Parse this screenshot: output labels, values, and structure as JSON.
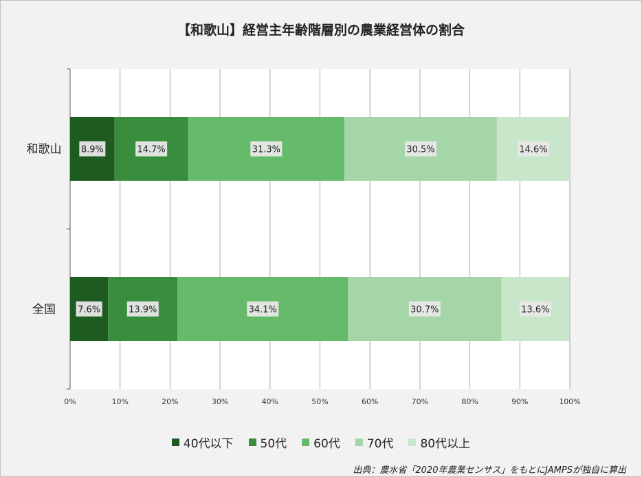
{
  "chart_data": {
    "type": "bar",
    "orientation": "horizontal",
    "stacked": "percent",
    "title": "【和歌山】経営主年齢階層別の農業経営体の割合",
    "categories": [
      "和歌山",
      "全国"
    ],
    "series": [
      {
        "name": "40代以下",
        "values": [
          8.9,
          7.6
        ],
        "labels": [
          "8.9%",
          "7.6%"
        ],
        "color": "#1e5b20"
      },
      {
        "name": "50代",
        "values": [
          14.7,
          13.9
        ],
        "labels": [
          "14.7%",
          "13.9%"
        ],
        "color": "#388e3c"
      },
      {
        "name": "60代",
        "values": [
          31.3,
          34.1
        ],
        "labels": [
          "31.3%",
          "34.1%"
        ],
        "color": "#66bb6a"
      },
      {
        "name": "70代",
        "values": [
          30.5,
          30.7
        ],
        "labels": [
          "30.5%",
          "30.7%"
        ],
        "color": "#a5d6a7"
      },
      {
        "name": "80代以上",
        "values": [
          14.6,
          13.6
        ],
        "labels": [
          "14.6%",
          "13.6%"
        ],
        "color": "#c8e6c9"
      }
    ],
    "xlim": [
      0,
      100
    ],
    "xticks": [
      "0%",
      "10%",
      "20%",
      "30%",
      "40%",
      "50%",
      "60%",
      "70%",
      "80%",
      "90%",
      "100%"
    ],
    "grid": true,
    "legend_position": "bottom"
  },
  "source_note": "出典：農水省「2020年農業センサス」をもとにJAMPSが独自に算出"
}
